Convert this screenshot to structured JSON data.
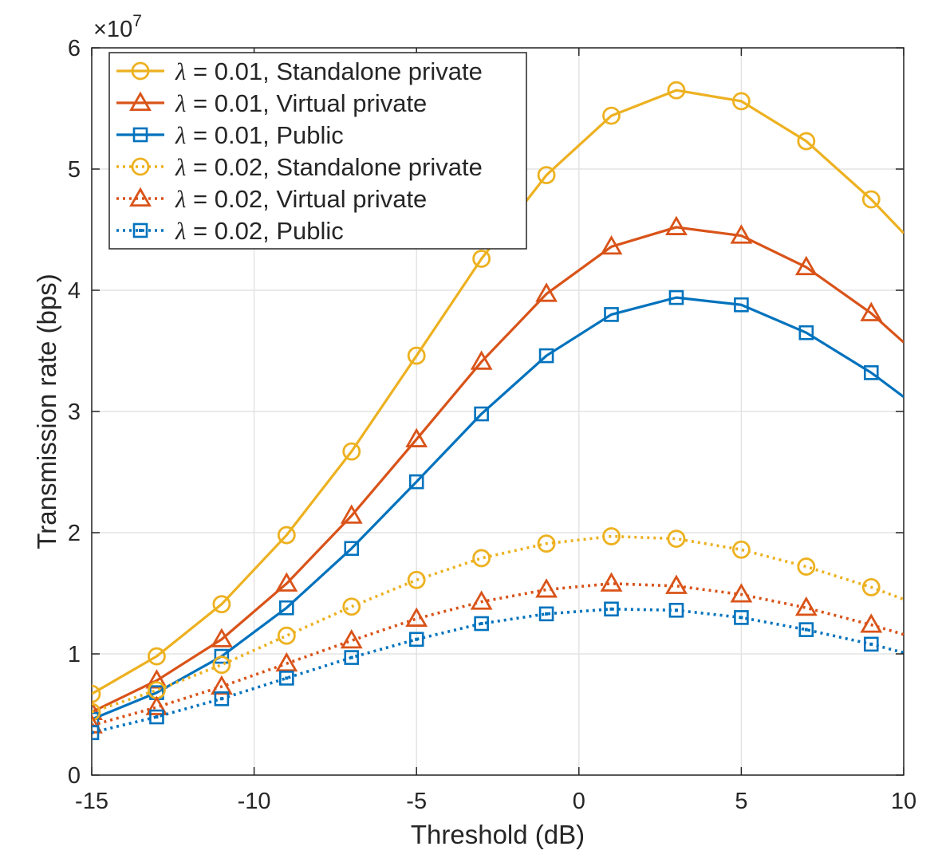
{
  "chart_data": {
    "type": "line",
    "xlabel": "Threshold (dB)",
    "ylabel": "Transmission rate (bps)",
    "y_exponent_label": "×10",
    "y_exponent_power": "7",
    "xlim": [
      -15,
      10
    ],
    "ylim": [
      0,
      6
    ],
    "x_ticks": [
      -15,
      -10,
      -5,
      0,
      5,
      10
    ],
    "x_tick_labels": [
      "-15",
      "-10",
      "-5",
      "0",
      "5",
      "10"
    ],
    "y_ticks": [
      0,
      1,
      2,
      3,
      4,
      5,
      6
    ],
    "y_tick_labels": [
      "0",
      "1",
      "2",
      "3",
      "4",
      "5",
      "6"
    ],
    "grid": true,
    "legend_position": "top-left",
    "x": [
      -15,
      -13,
      -11,
      -9,
      -7,
      -5,
      -3,
      -1,
      1,
      3,
      5,
      7,
      9,
      10
    ],
    "series": [
      {
        "name": "λ = 0.01, Standalone private",
        "legend_symbol": "λ",
        "legend_text": " = 0.01, Standalone private",
        "color": "#EDB120",
        "marker": "circle",
        "dash": "solid",
        "values": [
          0.67,
          0.98,
          1.41,
          1.98,
          2.67,
          3.46,
          4.26,
          4.95,
          5.44,
          5.65,
          5.56,
          5.23,
          4.75,
          4.47
        ]
      },
      {
        "name": "λ = 0.01, Virtual private",
        "legend_symbol": "λ",
        "legend_text": " = 0.01, Virtual private",
        "color": "#D95319",
        "marker": "triangle",
        "dash": "solid",
        "values": [
          0.52,
          0.78,
          1.12,
          1.58,
          2.14,
          2.77,
          3.41,
          3.97,
          4.36,
          4.52,
          4.45,
          4.19,
          3.81,
          3.57
        ]
      },
      {
        "name": "λ = 0.01, Public",
        "legend_symbol": "λ",
        "legend_text": " = 0.01, Public",
        "color": "#0072BD",
        "marker": "square",
        "dash": "solid",
        "values": [
          0.46,
          0.68,
          0.98,
          1.38,
          1.87,
          2.42,
          2.98,
          3.46,
          3.8,
          3.94,
          3.88,
          3.65,
          3.32,
          3.12
        ]
      },
      {
        "name": "λ = 0.02, Standalone private",
        "legend_symbol": "λ",
        "legend_text": " = 0.02, Standalone private",
        "color": "#EDB120",
        "marker": "circle",
        "dash": "dotted",
        "values": [
          0.52,
          0.7,
          0.91,
          1.15,
          1.39,
          1.61,
          1.79,
          1.91,
          1.97,
          1.95,
          1.86,
          1.72,
          1.55,
          1.45
        ]
      },
      {
        "name": "λ = 0.02, Virtual private",
        "legend_symbol": "λ",
        "legend_text": " = 0.02, Virtual private",
        "color": "#D95319",
        "marker": "triangle",
        "dash": "dotted",
        "values": [
          0.41,
          0.56,
          0.73,
          0.92,
          1.11,
          1.29,
          1.43,
          1.53,
          1.58,
          1.56,
          1.49,
          1.38,
          1.24,
          1.16
        ]
      },
      {
        "name": "λ = 0.02, Public",
        "legend_symbol": "λ",
        "legend_text": " = 0.02, Public",
        "color": "#0072BD",
        "marker": "square",
        "dash": "dotted",
        "values": [
          0.35,
          0.48,
          0.63,
          0.8,
          0.97,
          1.12,
          1.25,
          1.33,
          1.37,
          1.36,
          1.3,
          1.2,
          1.08,
          1.01
        ]
      }
    ]
  }
}
